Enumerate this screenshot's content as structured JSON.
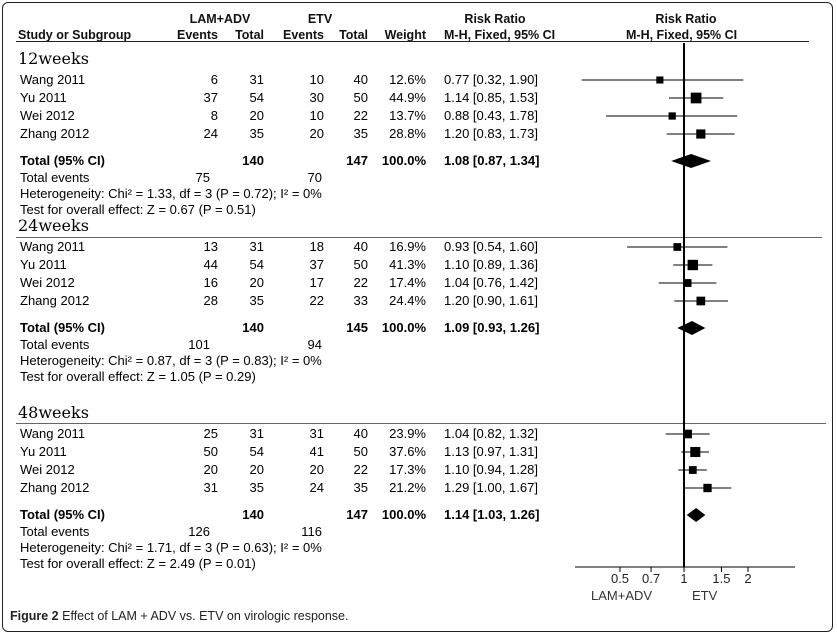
{
  "header": {
    "group1": "LAM+ADV",
    "group2": "ETV",
    "rr_left": "Risk Ratio",
    "rr_right": "Risk Ratio",
    "study": "Study or Subgroup",
    "events1": "Events",
    "total1": "Total",
    "events2": "Events",
    "total2": "Total",
    "weight": "Weight",
    "method_left": "M-H, Fixed, 95% CI",
    "method_right": "M-H, Fixed, 95% CI"
  },
  "caption": {
    "label": "Figure 2",
    "text": "Effect of LAM + ADV vs. ETV on virologic response."
  },
  "chart_data": {
    "type": "forest",
    "x_axis": {
      "scale": "log",
      "ticks": [
        0.5,
        0.7,
        1,
        1.5,
        2
      ],
      "tick_labels": [
        "0.5",
        "0.7",
        "1",
        "1.5",
        "2"
      ],
      "xlim": [
        0.35,
        2.3
      ],
      "favours_left": "LAM+ADV",
      "favours_right": "ETV"
    },
    "groups": [
      {
        "name": "12weeks",
        "studies": [
          {
            "study": "Wang 2011",
            "e1": "6",
            "n1": "31",
            "e2": "10",
            "n2": "40",
            "weight": "12.6%",
            "ci_text": "0.77 [0.32, 1.90]",
            "rr": 0.77,
            "lo": 0.32,
            "hi": 1.9,
            "w": 12.6
          },
          {
            "study": "Yu 2011",
            "e1": "37",
            "n1": "54",
            "e2": "30",
            "n2": "50",
            "weight": "44.9%",
            "ci_text": "1.14 [0.85, 1.53]",
            "rr": 1.14,
            "lo": 0.85,
            "hi": 1.53,
            "w": 44.9
          },
          {
            "study": "Wei 2012",
            "e1": "8",
            "n1": "20",
            "e2": "10",
            "n2": "22",
            "weight": "13.7%",
            "ci_text": "0.88 [0.43, 1.78]",
            "rr": 0.88,
            "lo": 0.43,
            "hi": 1.78,
            "w": 13.7
          },
          {
            "study": "Zhang  2012",
            "e1": "24",
            "n1": "35",
            "e2": "20",
            "n2": "35",
            "weight": "28.8%",
            "ci_text": "1.20 [0.83, 1.73]",
            "rr": 1.2,
            "lo": 0.83,
            "hi": 1.73,
            "w": 28.8
          }
        ],
        "total": {
          "label": "Total (95% CI)",
          "n1": "140",
          "n2": "147",
          "weight": "100.0%",
          "ci_text": "1.08 [0.87, 1.34]",
          "rr": 1.08,
          "lo": 0.87,
          "hi": 1.34
        },
        "total_events": {
          "label": "Total events",
          "e1": "75",
          "e2": "70"
        },
        "heterogeneity": "Heterogeneity: Chi² = 1.33, df = 3 (P = 0.72); I² = 0%",
        "overall": "Test for overall effect: Z = 0.67 (P = 0.51)"
      },
      {
        "name": "24weeks",
        "studies": [
          {
            "study": "Wang 2011",
            "e1": "13",
            "n1": "31",
            "e2": "18",
            "n2": "40",
            "weight": "16.9%",
            "ci_text": "0.93 [0.54, 1.60]",
            "rr": 0.93,
            "lo": 0.54,
            "hi": 1.6,
            "w": 16.9
          },
          {
            "study": "Yu 2011",
            "e1": "44",
            "n1": "54",
            "e2": "37",
            "n2": "50",
            "weight": "41.3%",
            "ci_text": "1.10 [0.89, 1.36]",
            "rr": 1.1,
            "lo": 0.89,
            "hi": 1.36,
            "w": 41.3
          },
          {
            "study": "Wei 2012",
            "e1": "16",
            "n1": "20",
            "e2": "17",
            "n2": "22",
            "weight": "17.4%",
            "ci_text": "1.04 [0.76, 1.42]",
            "rr": 1.04,
            "lo": 0.76,
            "hi": 1.42,
            "w": 17.4
          },
          {
            "study": "Zhang  2012",
            "e1": "28",
            "n1": "35",
            "e2": "22",
            "n2": "33",
            "weight": "24.4%",
            "ci_text": "1.20 [0.90, 1.61]",
            "rr": 1.2,
            "lo": 0.9,
            "hi": 1.61,
            "w": 24.4
          }
        ],
        "total": {
          "label": "Total (95% CI)",
          "n1": "140",
          "n2": "145",
          "weight": "100.0%",
          "ci_text": "1.09 [0.93, 1.26]",
          "rr": 1.09,
          "lo": 0.93,
          "hi": 1.26
        },
        "total_events": {
          "label": "Total events",
          "e1": "101",
          "e2": "94"
        },
        "heterogeneity": "Heterogeneity: Chi² = 0.87, df = 3 (P = 0.83); I² = 0%",
        "overall": "Test for overall effect: Z = 1.05 (P = 0.29)"
      },
      {
        "name": "48weeks",
        "studies": [
          {
            "study": "Wang 2011",
            "e1": "25",
            "n1": "31",
            "e2": "31",
            "n2": "40",
            "weight": "23.9%",
            "ci_text": "1.04 [0.82, 1.32]",
            "rr": 1.04,
            "lo": 0.82,
            "hi": 1.32,
            "w": 23.9
          },
          {
            "study": "Yu 2011",
            "e1": "50",
            "n1": "54",
            "e2": "41",
            "n2": "50",
            "weight": "37.6%",
            "ci_text": "1.13 [0.97, 1.31]",
            "rr": 1.13,
            "lo": 0.97,
            "hi": 1.31,
            "w": 37.6
          },
          {
            "study": "Wei 2012",
            "e1": "20",
            "n1": "20",
            "e2": "20",
            "n2": "22",
            "weight": "17.3%",
            "ci_text": "1.10 [0.94, 1.28]",
            "rr": 1.1,
            "lo": 0.94,
            "hi": 1.28,
            "w": 17.3
          },
          {
            "study": "Zhang  2012",
            "e1": "31",
            "n1": "35",
            "e2": "24",
            "n2": "35",
            "weight": "21.2%",
            "ci_text": "1.29 [1.00, 1.67]",
            "rr": 1.29,
            "lo": 1.0,
            "hi": 1.67,
            "w": 21.2
          }
        ],
        "total": {
          "label": "Total (95% CI)",
          "n1": "140",
          "n2": "147",
          "weight": "100.0%",
          "ci_text": "1.14 [1.03, 1.26]",
          "rr": 1.14,
          "lo": 1.03,
          "hi": 1.26
        },
        "total_events": {
          "label": "Total events",
          "e1": "126",
          "e2": "116"
        },
        "heterogeneity": "Heterogeneity: Chi² = 1.71, df = 3 (P = 0.63); I² = 0%",
        "overall": "Test for overall effect: Z = 2.49 (P = 0.01)"
      }
    ]
  }
}
